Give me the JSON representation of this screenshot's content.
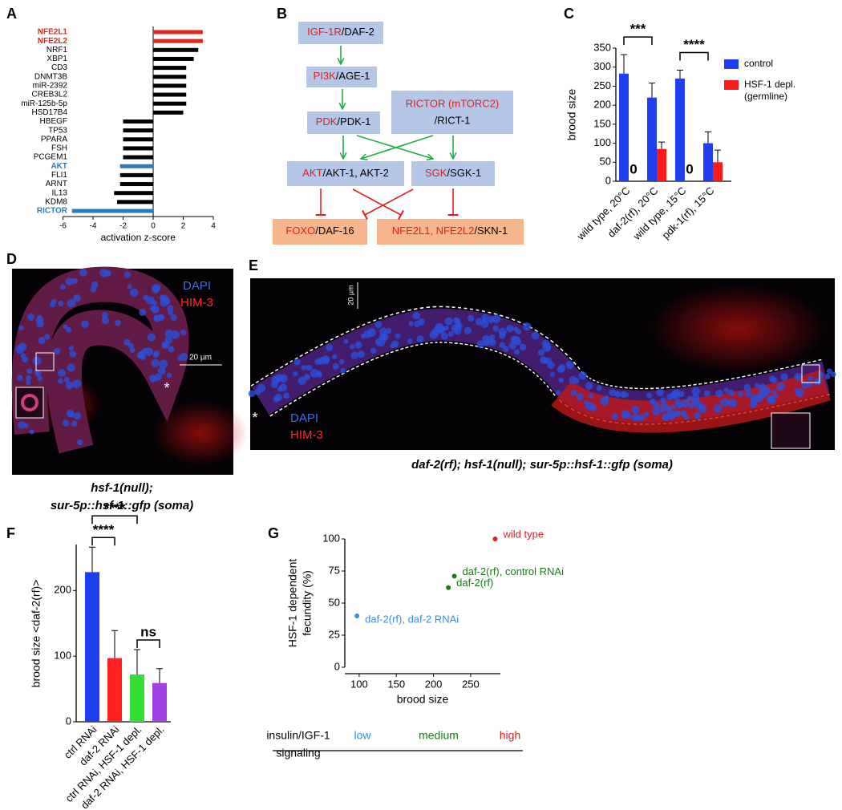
{
  "panel_labels": [
    "A",
    "B",
    "C",
    "D",
    "E",
    "F",
    "G"
  ],
  "chart_data": [
    {
      "type": "bar",
      "orientation": "horizontal",
      "categories": [
        "NFE2L1",
        "NFE2L2",
        "NRF1",
        "XBP1",
        "CD3",
        "DNMT3B",
        "miR-2392",
        "CREB3L2",
        "miR-125b-5p",
        "HSD17B4",
        "HBEGF",
        "TP53",
        "PPARA",
        "FSH",
        "PCGEM1",
        "AKT",
        "FLI1",
        "ARNT",
        "IL13",
        "KDM8",
        "RICTOR"
      ],
      "values": [
        3.3,
        3.3,
        3.0,
        2.7,
        2.2,
        2.2,
        2.2,
        2.2,
        2.2,
        2.0,
        -2.0,
        -2.0,
        -2.0,
        -2.0,
        -2.0,
        -2.2,
        -2.2,
        -2.2,
        -2.6,
        -2.4,
        -5.4
      ],
      "colors": [
        "#e3241f",
        "#e3241f",
        "#000000",
        "#000000",
        "#000000",
        "#000000",
        "#000000",
        "#000000",
        "#000000",
        "#000000",
        "#000000",
        "#000000",
        "#000000",
        "#000000",
        "#000000",
        "#2b7bb9",
        "#000000",
        "#000000",
        "#000000",
        "#000000",
        "#2b7bb9"
      ],
      "xlim": [
        -6,
        4
      ],
      "xticks": [
        -6,
        -4,
        -2,
        0,
        2,
        4
      ],
      "xlabel": "activation z-score"
    },
    {
      "type": "bar",
      "categories": [
        "wild type, 20°C",
        "daf-2(rf), 20°C",
        "wild type, 15°C",
        "pdk-1(rf), 15°C"
      ],
      "series": [
        {
          "name": "control",
          "color": "#1f3ff0",
          "values": [
            283,
            220,
            270,
            100
          ],
          "errors": [
            50,
            38,
            22,
            30
          ]
        },
        {
          "name": "HSF-1 depl. (germline)",
          "color": "#ff1a1a",
          "values": [
            0,
            85,
            0,
            50
          ],
          "errors": [
            null,
            18,
            null,
            32
          ]
        }
      ],
      "ylim": [
        0,
        350
      ],
      "yticks": [
        0,
        50,
        100,
        150,
        200,
        250,
        300,
        350
      ],
      "ylabel": "brood size",
      "brackets": [
        {
          "label": "***",
          "between": [
            0,
            1
          ]
        },
        {
          "label": "****",
          "between": [
            2,
            3
          ]
        }
      ]
    },
    {
      "type": "bar",
      "categories": [
        "ctrl RNAi",
        "daf-2 RNAi",
        "ctrl RNAi, HSF-1 depl.",
        "daf-2 RNAi, HSF-1 depl."
      ],
      "values": [
        228,
        97,
        72,
        59
      ],
      "errors": [
        38,
        42,
        38,
        22
      ],
      "colors": [
        "#2040f0",
        "#ff2020",
        "#33dd33",
        "#a040e0"
      ],
      "ylim": [
        0,
        270
      ],
      "yticks": [
        0,
        100,
        200
      ],
      "ylabel": "brood size <daf-2(rf)>",
      "brackets": [
        {
          "label": "****",
          "between": [
            0,
            1
          ]
        },
        {
          "label": "****",
          "between": [
            0,
            2
          ]
        },
        {
          "label": "ns",
          "between": [
            2,
            3
          ]
        }
      ]
    },
    {
      "type": "scatter",
      "series": [
        {
          "name": "wild type",
          "color": "#e02020",
          "x": [
            283
          ],
          "values": [
            100
          ]
        },
        {
          "name": "daf-2(rf), control RNAi",
          "color": "#1a7a1a",
          "x": [
            228
          ],
          "values": [
            71
          ]
        },
        {
          "name": "daf-2(rf)",
          "color": "#1a7a1a",
          "x": [
            220
          ],
          "values": [
            62
          ]
        },
        {
          "name": "daf-2(rf), daf-2 RNAi",
          "color": "#3a8ee0",
          "x": [
            97
          ],
          "values": [
            40
          ]
        }
      ],
      "xlim": [
        85,
        290
      ],
      "xticks": [
        100,
        150,
        200,
        250
      ],
      "ylim": [
        0,
        100
      ],
      "yticks": [
        0,
        25,
        50,
        75,
        100
      ],
      "xlabel": "brood size",
      "ylabel": [
        "HSF-1 dependent",
        "fecundity (%)"
      ]
    }
  ],
  "signaling_scale": {
    "title": [
      "insulin/IGF-1",
      "signaling"
    ],
    "levels": [
      {
        "text": "low",
        "color": "#3a8ee0"
      },
      {
        "text": "medium",
        "color": "#1a7a1a"
      },
      {
        "text": "high",
        "color": "#e02020"
      }
    ]
  },
  "diagram": {
    "nodes": [
      {
        "highlight": "IGF-1R",
        "rest": "/DAF-2"
      },
      {
        "highlight": "PI3K",
        "rest": "/AGE-1"
      },
      {
        "highlight": "PDK",
        "rest": "/PDK-1"
      },
      {
        "highlight": "RICTOR (mTORC2)",
        "rest": "/RICT-1"
      },
      {
        "highlight": "AKT",
        "rest": "/AKT-1, AKT-2"
      },
      {
        "highlight": "SGK",
        "rest": "/SGK-1"
      },
      {
        "highlight": "FOXO",
        "rest": "/DAF-16"
      },
      {
        "highlight": "NFE2L1, NFE2L2",
        "rest": "/SKN-1"
      }
    ]
  },
  "images": [
    {
      "channels": [
        "DAPI",
        "HIM-3"
      ],
      "scale_bar": "20 µm",
      "marker": "*",
      "caption": [
        "hsf-1(null);",
        "sur-5p::hsf-1::gfp (soma)"
      ]
    },
    {
      "channels": [
        "DAPI",
        "HIM-3"
      ],
      "scale_bar": "20 µm",
      "marker": "*",
      "caption": [
        "daf-2(rf); hsf-1(null); sur-5p::hsf-1::gfp (soma)"
      ]
    }
  ]
}
